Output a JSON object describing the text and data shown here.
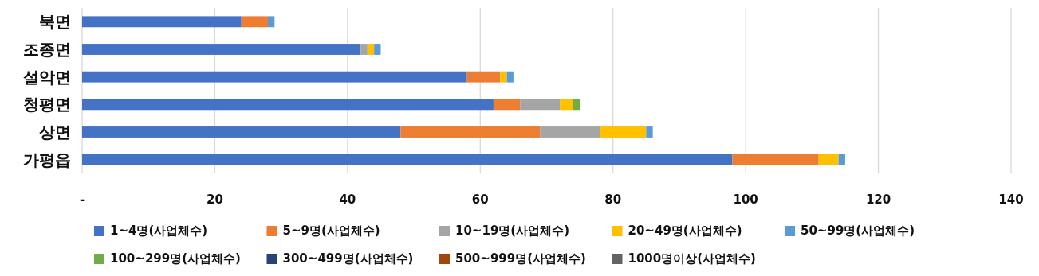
{
  "chart_data": {
    "type": "bar",
    "orientation": "horizontal",
    "stacked": true,
    "categories": [
      "북면",
      "조종면",
      "설악면",
      "청평면",
      "상면",
      "가평읍"
    ],
    "series": [
      {
        "name": "1~4명(사업체수)",
        "color": "#4472c4",
        "values": [
          24,
          42,
          58,
          62,
          48,
          98
        ]
      },
      {
        "name": "5~9명(사업체수)",
        "color": "#ed7d31",
        "values": [
          4,
          0,
          5,
          4,
          21,
          13
        ]
      },
      {
        "name": "10~19명(사업체수)",
        "color": "#a5a5a5",
        "values": [
          0,
          1,
          0,
          6,
          9,
          0
        ]
      },
      {
        "name": "20~49명(사업체수)",
        "color": "#ffc000",
        "values": [
          0,
          1,
          1,
          2,
          7,
          3
        ]
      },
      {
        "name": "50~99명(사업체수)",
        "color": "#5b9bd5",
        "values": [
          1,
          1,
          1,
          0,
          1,
          1
        ]
      },
      {
        "name": "100~299명(사업체수)",
        "color": "#70ad47",
        "values": [
          0,
          0,
          0,
          1,
          0,
          0
        ]
      },
      {
        "name": "300~499명(사업체수)",
        "color": "#264478",
        "values": [
          0,
          0,
          0,
          0,
          0,
          0
        ]
      },
      {
        "name": "500~999명(사업체수)",
        "color": "#9e480e",
        "values": [
          0,
          0,
          0,
          0,
          0,
          0
        ]
      },
      {
        "name": "1000명이상(사업체수)",
        "color": "#636363",
        "values": [
          0,
          0,
          0,
          0,
          0,
          0
        ]
      }
    ],
    "xlim": [
      0,
      140
    ],
    "xticks": [
      {
        "value": 0,
        "label": "-"
      },
      20,
      40,
      60,
      80,
      100,
      120,
      140
    ],
    "grid": "x",
    "legend": "bottom"
  }
}
